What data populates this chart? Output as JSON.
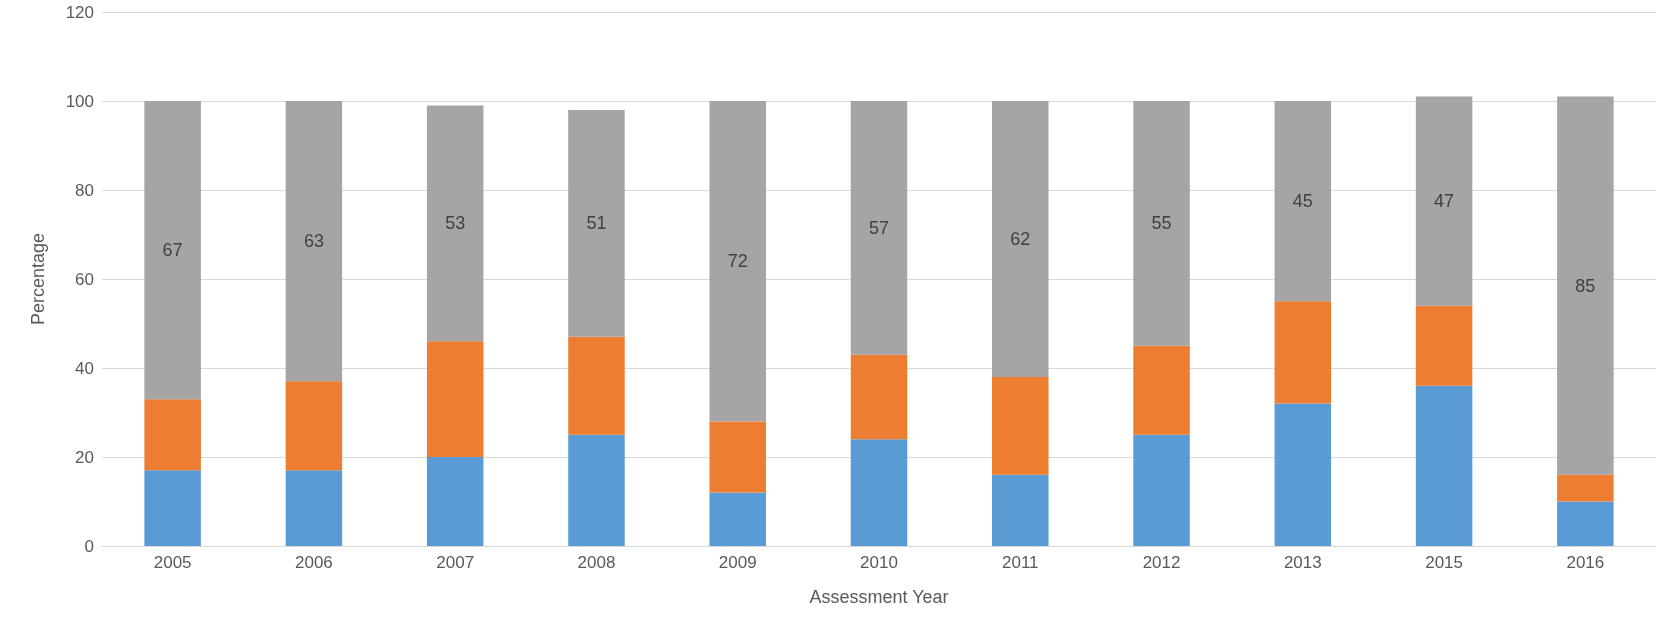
{
  "chart_data": {
    "type": "bar",
    "stacked": true,
    "xlabel": "Assessment Year",
    "ylabel": "Percentage",
    "categories": [
      "2005",
      "2006",
      "2007",
      "2008",
      "2009",
      "2010",
      "2011",
      "2012",
      "2013",
      "2015",
      "2016"
    ],
    "series": [
      {
        "color": "#5b9bd5",
        "values": [
          17,
          17,
          20,
          25,
          12,
          24,
          16,
          25,
          32,
          36,
          10
        ]
      },
      {
        "color": "#ed7d31",
        "values": [
          16,
          20,
          26,
          22,
          16,
          19,
          22,
          20,
          23,
          18,
          6
        ]
      },
      {
        "color": "#a5a5a5",
        "values": [
          67,
          63,
          53,
          51,
          72,
          57,
          62,
          55,
          45,
          47,
          85
        ],
        "value_labels": [
          "67",
          "63",
          "53",
          "51",
          "72",
          "57",
          "62",
          "55",
          "45",
          "47",
          "85"
        ]
      }
    ],
    "ylim": [
      0,
      120
    ],
    "yticks": [
      0,
      20,
      40,
      60,
      80,
      100,
      120
    ],
    "grid": "y"
  }
}
